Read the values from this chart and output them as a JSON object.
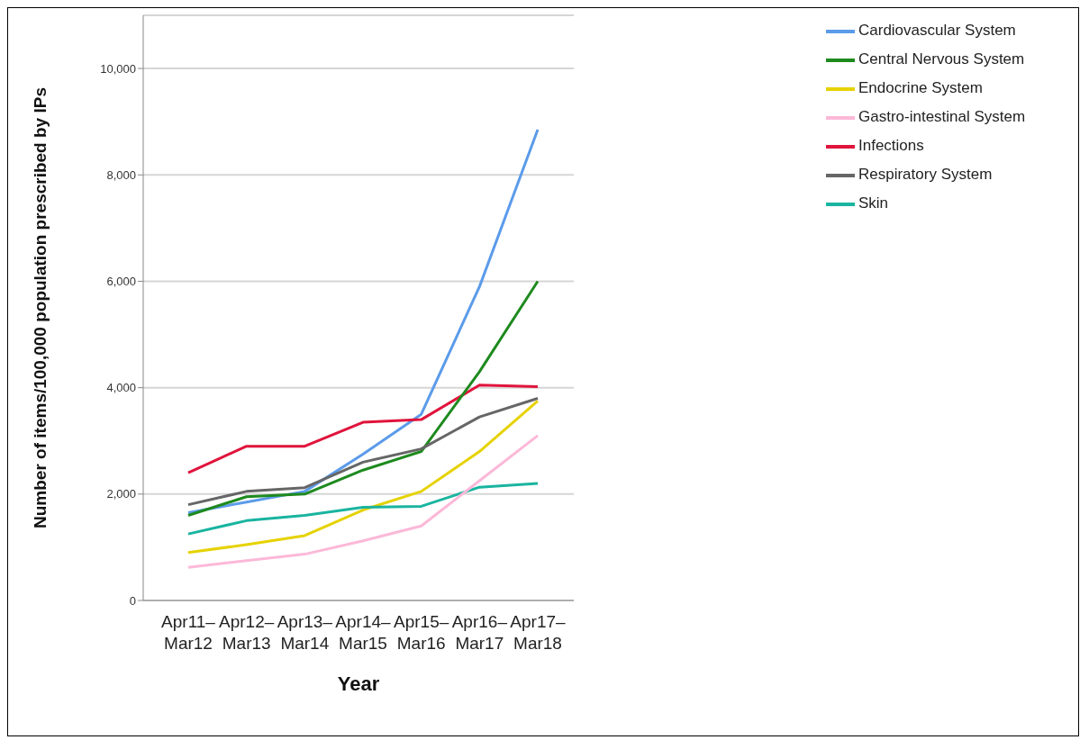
{
  "chart_data": {
    "type": "line",
    "xlabel": "Year",
    "ylabel": "Number of items/100,000 population prescribed by IPs",
    "categories": [
      "Apr11–Mar12",
      "Apr12–Mar13",
      "Apr13–Mar14",
      "Apr14–Mar15",
      "Apr15–Mar16",
      "Apr16–Mar17",
      "Apr17–Mar18"
    ],
    "ylim": [
      0,
      11000
    ],
    "yticks": [
      {
        "value": 0,
        "label": "0"
      },
      {
        "value": 2000,
        "label": "2,000"
      },
      {
        "value": 4000,
        "label": "4,000"
      },
      {
        "value": 6000,
        "label": "6,000"
      },
      {
        "value": 8000,
        "label": "8,000"
      },
      {
        "value": 10000,
        "label": "10,000"
      }
    ],
    "grid": "y",
    "legend": "top right",
    "marker": "none",
    "line_style": "solid",
    "series": [
      {
        "name": "Cardiovascular System",
        "color": "#5b9bea",
        "values": [
          1650,
          1850,
          2050,
          2750,
          3500,
          5900,
          8850
        ]
      },
      {
        "name": "Infections",
        "color": "#e0143c",
        "values": [
          2400,
          2900,
          2900,
          3350,
          3400,
          4050,
          4020
        ]
      },
      {
        "name": "Central Nervous System",
        "color": "#1e8a1e",
        "values": [
          1600,
          1950,
          2000,
          2450,
          2800,
          4300,
          6000
        ]
      },
      {
        "name": "Respiratory System",
        "color": "#666666",
        "values": [
          1800,
          2050,
          2120,
          2600,
          2850,
          3450,
          3800
        ]
      },
      {
        "name": "Endocrine System",
        "color": "#e6d200",
        "values": [
          900,
          1050,
          1220,
          1700,
          2050,
          2800,
          3750
        ]
      },
      {
        "name": "Skin",
        "color": "#1ab4a0",
        "values": [
          1250,
          1500,
          1600,
          1750,
          1770,
          2130,
          2200
        ]
      },
      {
        "name": "Gastro-intestinal System",
        "color": "#fcb8d8",
        "values": [
          620,
          750,
          870,
          1120,
          1400,
          2250,
          3100
        ]
      }
    ]
  }
}
